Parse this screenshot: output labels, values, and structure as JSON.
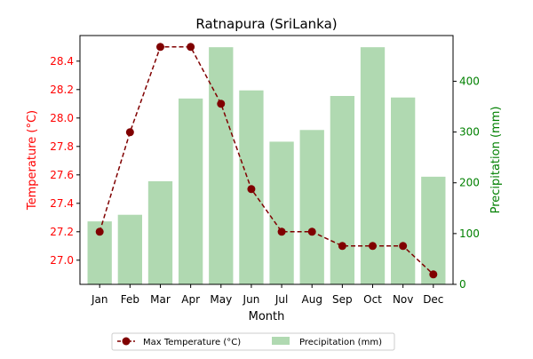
{
  "chart_data": {
    "type": "bar+line",
    "title": "Ratnapura (SriLanka)",
    "xlabel": "Month",
    "categories": [
      "Jan",
      "Feb",
      "Mar",
      "Apr",
      "May",
      "Jun",
      "Jul",
      "Aug",
      "Sep",
      "Oct",
      "Nov",
      "Dec"
    ],
    "left_axis": {
      "label": "Temperature (°C)",
      "color": "#ff0000",
      "ylim": [
        26.83,
        28.58
      ],
      "ticks": [
        "27.0",
        "27.2",
        "27.4",
        "27.6",
        "27.8",
        "28.0",
        "28.2",
        "28.4"
      ],
      "tick_values": [
        27.0,
        27.2,
        27.4,
        27.6,
        27.8,
        28.0,
        28.2,
        28.4
      ]
    },
    "right_axis": {
      "label": "Precipitation (mm)",
      "color": "#008000",
      "ylim": [
        0,
        490
      ],
      "ticks": [
        "0",
        "100",
        "200",
        "300",
        "400"
      ],
      "tick_values": [
        0,
        100,
        200,
        300,
        400
      ]
    },
    "series": [
      {
        "name": "Max Temperature (°C)",
        "kind": "line",
        "axis": "left",
        "color": "#800000",
        "values": [
          27.2,
          27.9,
          28.5,
          28.5,
          28.1,
          27.5,
          27.2,
          27.2,
          27.1,
          27.1,
          27.1,
          26.9
        ]
      },
      {
        "name": "Precipitation (mm)",
        "kind": "bar",
        "axis": "right",
        "color": "#b0d9b1",
        "values": [
          124,
          137,
          203,
          366,
          467,
          382,
          281,
          304,
          371,
          467,
          368,
          212
        ]
      }
    ],
    "legend_position": "bottom-center",
    "grid": false
  }
}
